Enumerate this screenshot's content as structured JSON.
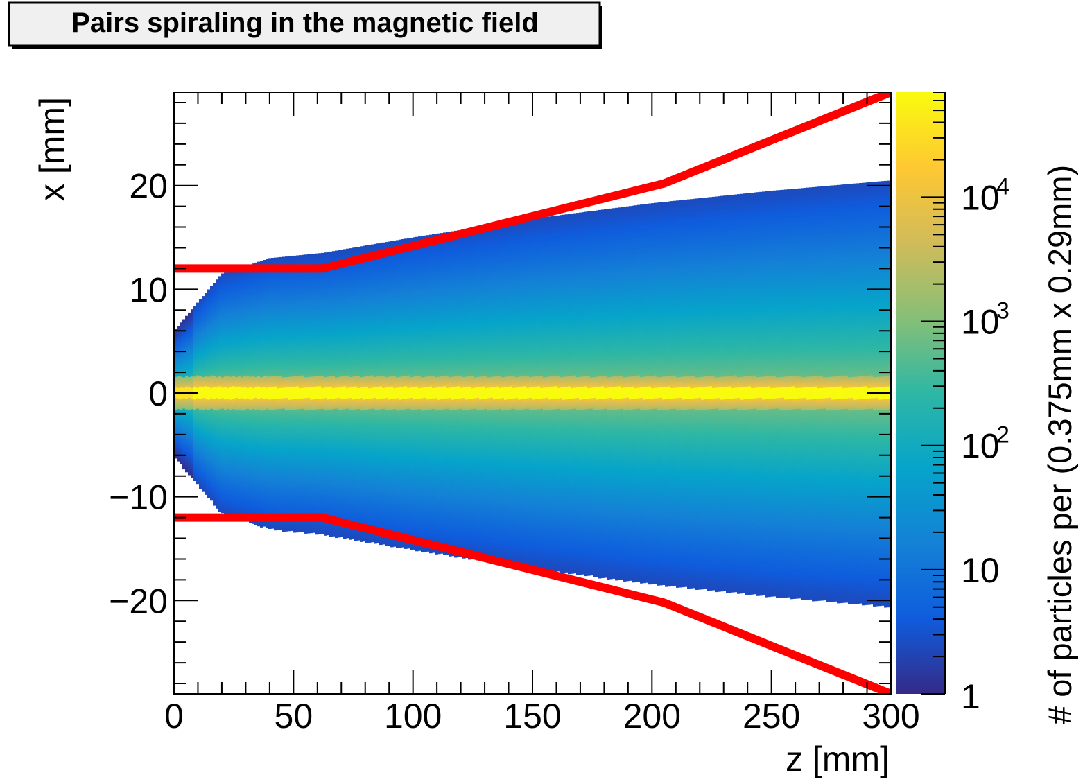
{
  "title": "Pairs spiraling in the magnetic field",
  "chart_data": {
    "type": "heatmap",
    "title": "Pairs spiraling in the magnetic field",
    "xlabel": "z [mm]",
    "ylabel": "x [mm]",
    "zlabel": "# of particles per (0.375mm x 0.29mm)",
    "xlim": [
      0,
      300
    ],
    "ylim": [
      -29,
      29
    ],
    "zlim": [
      1,
      70000
    ],
    "z_log_scale": true,
    "x_ticks": [
      "0",
      "50",
      "100",
      "150",
      "200",
      "250",
      "300"
    ],
    "y_ticks": [
      "20",
      "10",
      "0",
      "−10",
      "−20"
    ],
    "z_tick_labels": [
      {
        "base": "1",
        "exp": ""
      },
      {
        "base": "10",
        "exp": ""
      },
      {
        "base": "10",
        "exp": "2"
      },
      {
        "base": "10",
        "exp": "3"
      },
      {
        "base": "10",
        "exp": "4"
      }
    ],
    "palette": [
      "#352a87",
      "#0f5cdd",
      "#1481d6",
      "#06a4ca",
      "#2eb7a4",
      "#87bf77",
      "#d1bb59",
      "#fec832",
      "#f9fb0e"
    ],
    "line_color": "#ff0000",
    "density": {
      "description_series": "particle envelope half-width (x extent) vs z",
      "z": [
        0,
        20,
        40,
        62,
        100,
        150,
        200,
        250,
        300
      ],
      "envelope_halfwidth": [
        6,
        11.5,
        13,
        13.5,
        15,
        16.8,
        18.3,
        19.5,
        20.5
      ],
      "peak_density": 50000
    },
    "series": [
      {
        "name": "",
        "type": "line",
        "x": [
          0,
          62,
          205,
          300
        ],
        "y": [
          12,
          12,
          20.2,
          29
        ]
      },
      {
        "name": "",
        "type": "line",
        "x": [
          0,
          62,
          205,
          300
        ],
        "y": [
          -12,
          -12,
          -20.2,
          -29
        ]
      }
    ]
  }
}
